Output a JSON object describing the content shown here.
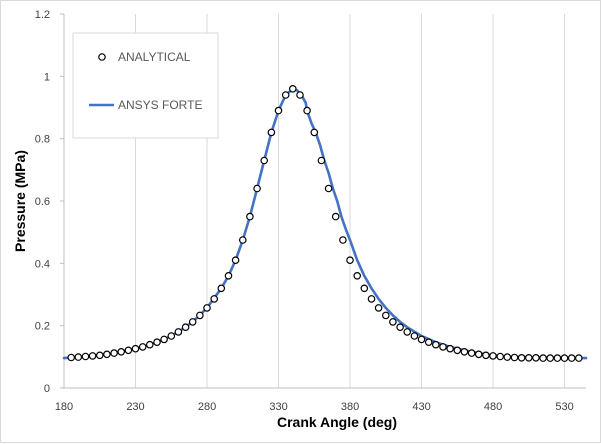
{
  "chart_data": {
    "type": "line",
    "xlabel": "Crank Angle (deg)",
    "ylabel": "Pressure (MPa)",
    "xlim": [
      180,
      545
    ],
    "ylim": [
      0,
      1.2
    ],
    "x_ticks": [
      180,
      230,
      280,
      330,
      380,
      430,
      480,
      530
    ],
    "y_ticks": [
      0,
      0.2,
      0.4,
      0.6,
      0.8,
      1,
      1.2
    ],
    "y_tick_labels": [
      "0",
      "0.2",
      "0.4",
      "0.6",
      "0.8",
      "1",
      "1.2"
    ],
    "grid": "vertical",
    "legend_position": "top-left",
    "series": [
      {
        "name": "ANALYTICAL",
        "style": "markers",
        "color": "#000000",
        "fill": "#ffffff",
        "x": [
          185,
          190,
          195,
          200,
          205,
          210,
          215,
          220,
          225,
          230,
          235,
          240,
          245,
          250,
          255,
          260,
          265,
          270,
          275,
          280,
          285,
          290,
          295,
          300,
          305,
          310,
          315,
          320,
          325,
          330,
          335,
          340,
          345,
          350,
          355,
          360,
          365,
          370,
          375,
          380,
          385,
          390,
          395,
          400,
          405,
          410,
          415,
          420,
          425,
          430,
          435,
          440,
          445,
          450,
          455,
          460,
          465,
          470,
          475,
          480,
          485,
          490,
          495,
          500,
          505,
          510,
          515,
          520,
          525,
          530,
          535,
          540
        ],
        "y": [
          0.098,
          0.099,
          0.101,
          0.103,
          0.105,
          0.108,
          0.112,
          0.116,
          0.121,
          0.126,
          0.132,
          0.139,
          0.147,
          0.156,
          0.167,
          0.18,
          0.195,
          0.212,
          0.233,
          0.257,
          0.286,
          0.32,
          0.36,
          0.41,
          0.475,
          0.55,
          0.64,
          0.73,
          0.82,
          0.89,
          0.94,
          0.96,
          0.94,
          0.89,
          0.82,
          0.73,
          0.64,
          0.55,
          0.475,
          0.41,
          0.36,
          0.32,
          0.286,
          0.257,
          0.233,
          0.212,
          0.195,
          0.18,
          0.167,
          0.156,
          0.147,
          0.139,
          0.132,
          0.126,
          0.121,
          0.116,
          0.112,
          0.108,
          0.105,
          0.103,
          0.101,
          0.099,
          0.098,
          0.097,
          0.097,
          0.097,
          0.096,
          0.096,
          0.096,
          0.096,
          0.096,
          0.096
        ]
      },
      {
        "name": "ANSYS FORTE",
        "style": "line",
        "color": "#4472c4",
        "x": [
          180,
          190,
          200,
          210,
          220,
          230,
          240,
          250,
          260,
          270,
          280,
          290,
          295,
          300,
          305,
          310,
          315,
          320,
          325,
          330,
          335,
          340,
          343,
          346,
          349,
          350,
          353,
          356,
          359,
          362,
          365,
          368,
          371,
          374,
          377,
          380,
          385,
          390,
          395,
          400,
          405,
          410,
          415,
          420,
          430,
          440,
          450,
          460,
          470,
          480,
          490,
          500,
          510,
          520,
          530,
          540,
          545
        ],
        "y": [
          0.096,
          0.099,
          0.103,
          0.108,
          0.116,
          0.126,
          0.139,
          0.156,
          0.18,
          0.212,
          0.257,
          0.32,
          0.36,
          0.41,
          0.475,
          0.55,
          0.64,
          0.73,
          0.82,
          0.89,
          0.94,
          0.96,
          0.955,
          0.94,
          0.915,
          0.89,
          0.85,
          0.82,
          0.78,
          0.73,
          0.69,
          0.64,
          0.6,
          0.55,
          0.51,
          0.475,
          0.41,
          0.36,
          0.32,
          0.286,
          0.257,
          0.233,
          0.212,
          0.195,
          0.167,
          0.147,
          0.132,
          0.121,
          0.112,
          0.105,
          0.101,
          0.099,
          0.098,
          0.097,
          0.096,
          0.096,
          0.096
        ]
      }
    ]
  }
}
